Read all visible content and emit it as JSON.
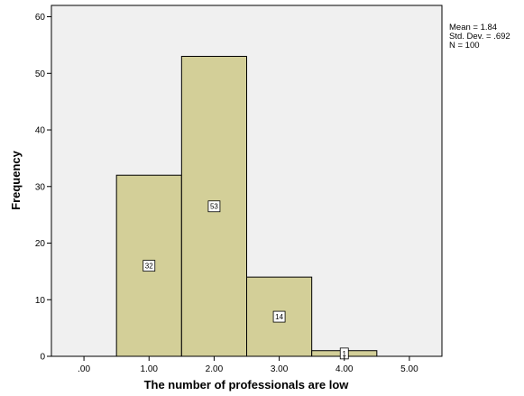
{
  "chart_data": {
    "type": "bar",
    "subtype": "histogram",
    "xlabel": "The number of professionals are low",
    "ylabel": "Frequency",
    "xlim": [
      -0.5,
      5.5
    ],
    "ylim": [
      0,
      62
    ],
    "x_ticks": [
      {
        "value": 0,
        "label": ".00"
      },
      {
        "value": 1,
        "label": "1.00"
      },
      {
        "value": 2,
        "label": "2.00"
      },
      {
        "value": 3,
        "label": "3.00"
      },
      {
        "value": 4,
        "label": "4.00"
      },
      {
        "value": 5,
        "label": "5.00"
      }
    ],
    "y_ticks": [
      0,
      10,
      20,
      30,
      40,
      50,
      60
    ],
    "bins": [
      {
        "center": 1,
        "width": 1,
        "value": 32,
        "label": "32"
      },
      {
        "center": 2,
        "width": 1,
        "value": 53,
        "label": "53"
      },
      {
        "center": 3,
        "width": 1,
        "value": 14,
        "label": "14"
      },
      {
        "center": 4,
        "width": 1,
        "value": 1,
        "label": "1"
      }
    ],
    "stats": {
      "mean": "Mean = 1.84",
      "std": "Std. Dev. = .692",
      "n": "N = 100"
    },
    "colors": {
      "bar_fill": "#d3cf98",
      "bar_stroke": "#000000",
      "plot_background": "#f0f0f0",
      "label_box": "#ffffff"
    },
    "grid": false
  }
}
